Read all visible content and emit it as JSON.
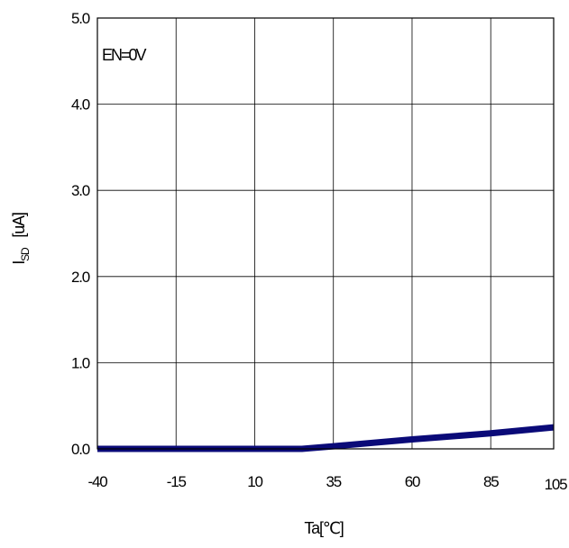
{
  "chart_data": {
    "type": "line",
    "annotation": "EN=0V",
    "xlabel": "Ta[℃]",
    "ylabel_main": "I",
    "ylabel_sub": "SD",
    "ylabel_unit": "[uA]",
    "xlim": [
      -40,
      105
    ],
    "ylim": [
      0,
      5
    ],
    "x_ticks": [
      -40,
      -15,
      10,
      35,
      60,
      85,
      105
    ],
    "x_tick_labels": [
      "-40",
      "-15",
      "10",
      "35",
      "60",
      "85",
      "105"
    ],
    "y_ticks": [
      0,
      1,
      2,
      3,
      4,
      5
    ],
    "y_tick_labels": [
      "0.0",
      "1.0",
      "2.0",
      "3.0",
      "4.0",
      "5.0"
    ],
    "grid": true,
    "series": [
      {
        "color": "#0a0a78",
        "x": [
          -40,
          -15,
          10,
          25,
          35,
          60,
          85,
          105
        ],
        "y": [
          0.0,
          0.0,
          0.0,
          0.0,
          0.03,
          0.11,
          0.18,
          0.25
        ]
      }
    ]
  }
}
